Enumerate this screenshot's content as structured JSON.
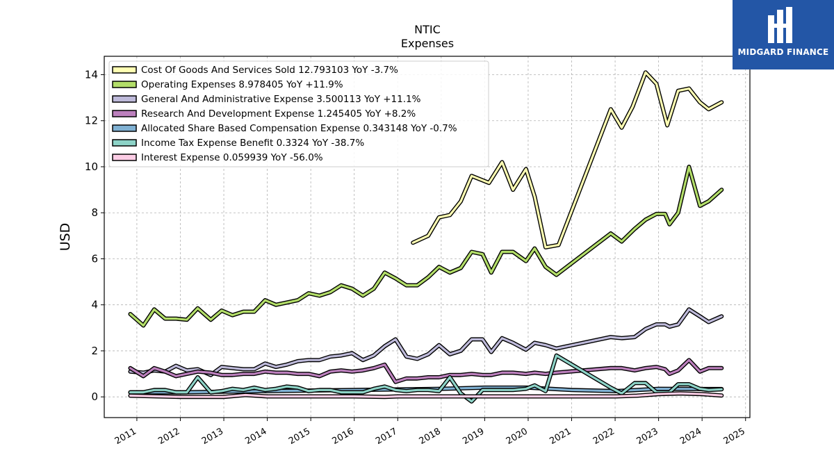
{
  "chart_data": {
    "type": "line",
    "title": "NTIC",
    "subtitle": "Expenses",
    "ylabel": "USD",
    "xlabel": "",
    "ylim": [
      -0.9,
      14.8
    ],
    "xlim": [
      2010.25,
      2025.1
    ],
    "yticks": [
      0,
      2,
      4,
      6,
      8,
      10,
      12,
      14
    ],
    "xticks": [
      2011,
      2012,
      2013,
      2014,
      2015,
      2016,
      2017,
      2018,
      2019,
      2020,
      2021,
      2022,
      2023,
      2024,
      2025
    ],
    "grid": true,
    "legend_position": "top-left",
    "series": [
      {
        "name": "Cost Of Goods And Services Sold",
        "legend_label": "Cost Of Goods And Services Sold  12.793103 YoY -3.7%",
        "color": "#ffffb3",
        "points": [
          [
            2017.35,
            6.7
          ],
          [
            2017.7,
            7.0
          ],
          [
            2017.95,
            7.8
          ],
          [
            2018.2,
            7.9
          ],
          [
            2018.45,
            8.5
          ],
          [
            2018.7,
            9.6
          ],
          [
            2019.1,
            9.3
          ],
          [
            2019.4,
            10.2
          ],
          [
            2019.65,
            9.0
          ],
          [
            2019.95,
            9.9
          ],
          [
            2020.15,
            8.7
          ],
          [
            2020.4,
            6.5
          ],
          [
            2020.7,
            6.6
          ],
          [
            2021.9,
            12.5
          ],
          [
            2022.15,
            11.7
          ],
          [
            2022.4,
            12.6
          ],
          [
            2022.7,
            14.1
          ],
          [
            2022.95,
            13.6
          ],
          [
            2023.2,
            11.8
          ],
          [
            2023.45,
            13.3
          ],
          [
            2023.7,
            13.4
          ],
          [
            2023.95,
            12.8
          ],
          [
            2024.15,
            12.5
          ],
          [
            2024.45,
            12.8
          ]
        ]
      },
      {
        "name": "Operating Expenses",
        "legend_label": "Operating Expenses  8.978405 YoY +11.9%",
        "color": "#b3de69",
        "points": [
          [
            2010.85,
            3.6
          ],
          [
            2011.15,
            3.1
          ],
          [
            2011.4,
            3.8
          ],
          [
            2011.65,
            3.4
          ],
          [
            2011.9,
            3.4
          ],
          [
            2012.15,
            3.35
          ],
          [
            2012.4,
            3.85
          ],
          [
            2012.7,
            3.35
          ],
          [
            2012.95,
            3.75
          ],
          [
            2013.2,
            3.55
          ],
          [
            2013.45,
            3.7
          ],
          [
            2013.7,
            3.7
          ],
          [
            2013.95,
            4.2
          ],
          [
            2014.2,
            4.0
          ],
          [
            2014.45,
            4.1
          ],
          [
            2014.7,
            4.2
          ],
          [
            2014.95,
            4.5
          ],
          [
            2015.2,
            4.4
          ],
          [
            2015.45,
            4.55
          ],
          [
            2015.7,
            4.85
          ],
          [
            2015.95,
            4.7
          ],
          [
            2016.2,
            4.4
          ],
          [
            2016.45,
            4.7
          ],
          [
            2016.7,
            5.4
          ],
          [
            2016.95,
            5.15
          ],
          [
            2017.2,
            4.85
          ],
          [
            2017.45,
            4.85
          ],
          [
            2017.7,
            5.2
          ],
          [
            2017.95,
            5.65
          ],
          [
            2018.2,
            5.4
          ],
          [
            2018.45,
            5.6
          ],
          [
            2018.7,
            6.3
          ],
          [
            2018.95,
            6.2
          ],
          [
            2019.15,
            5.4
          ],
          [
            2019.4,
            6.3
          ],
          [
            2019.65,
            6.3
          ],
          [
            2019.95,
            5.9
          ],
          [
            2020.15,
            6.45
          ],
          [
            2020.4,
            5.65
          ],
          [
            2020.65,
            5.3
          ],
          [
            2021.9,
            7.1
          ],
          [
            2022.15,
            6.75
          ],
          [
            2022.45,
            7.3
          ],
          [
            2022.7,
            7.7
          ],
          [
            2022.95,
            7.95
          ],
          [
            2023.15,
            7.95
          ],
          [
            2023.25,
            7.5
          ],
          [
            2023.45,
            8.0
          ],
          [
            2023.7,
            10.0
          ],
          [
            2023.95,
            8.3
          ],
          [
            2024.15,
            8.5
          ],
          [
            2024.45,
            9.0
          ]
        ]
      },
      {
        "name": "General And Administrative Expense",
        "legend_label": "General And Administrative Expense  3.500113 YoY +11.1%",
        "color": "#bebada",
        "points": [
          [
            2010.85,
            1.1
          ],
          [
            2011.15,
            1.05
          ],
          [
            2011.4,
            1.15
          ],
          [
            2011.65,
            1.1
          ],
          [
            2011.9,
            1.35
          ],
          [
            2012.15,
            1.15
          ],
          [
            2012.4,
            1.2
          ],
          [
            2012.7,
            0.95
          ],
          [
            2012.95,
            1.3
          ],
          [
            2013.2,
            1.25
          ],
          [
            2013.45,
            1.2
          ],
          [
            2013.7,
            1.2
          ],
          [
            2013.95,
            1.45
          ],
          [
            2014.2,
            1.3
          ],
          [
            2014.45,
            1.4
          ],
          [
            2014.7,
            1.55
          ],
          [
            2014.95,
            1.6
          ],
          [
            2015.2,
            1.6
          ],
          [
            2015.45,
            1.75
          ],
          [
            2015.7,
            1.8
          ],
          [
            2015.95,
            1.9
          ],
          [
            2016.2,
            1.6
          ],
          [
            2016.45,
            1.8
          ],
          [
            2016.7,
            2.2
          ],
          [
            2016.95,
            2.5
          ],
          [
            2017.2,
            1.75
          ],
          [
            2017.45,
            1.65
          ],
          [
            2017.7,
            1.85
          ],
          [
            2017.95,
            2.25
          ],
          [
            2018.2,
            1.85
          ],
          [
            2018.45,
            2.0
          ],
          [
            2018.7,
            2.5
          ],
          [
            2018.95,
            2.5
          ],
          [
            2019.15,
            1.95
          ],
          [
            2019.4,
            2.55
          ],
          [
            2019.65,
            2.35
          ],
          [
            2019.95,
            2.05
          ],
          [
            2020.15,
            2.35
          ],
          [
            2020.4,
            2.25
          ],
          [
            2020.65,
            2.1
          ],
          [
            2021.9,
            2.6
          ],
          [
            2022.15,
            2.55
          ],
          [
            2022.45,
            2.6
          ],
          [
            2022.7,
            2.95
          ],
          [
            2022.95,
            3.15
          ],
          [
            2023.15,
            3.15
          ],
          [
            2023.25,
            3.05
          ],
          [
            2023.45,
            3.15
          ],
          [
            2023.7,
            3.8
          ],
          [
            2023.95,
            3.5
          ],
          [
            2024.15,
            3.25
          ],
          [
            2024.45,
            3.5
          ]
        ]
      },
      {
        "name": "Research And Development Expense",
        "legend_label": "Research And Development Expense  1.245405 YoY +8.2%",
        "color": "#bc80bd",
        "points": [
          [
            2010.85,
            1.25
          ],
          [
            2011.15,
            0.9
          ],
          [
            2011.4,
            1.25
          ],
          [
            2011.65,
            1.1
          ],
          [
            2011.9,
            0.9
          ],
          [
            2012.15,
            1.0
          ],
          [
            2012.4,
            1.1
          ],
          [
            2012.7,
            1.05
          ],
          [
            2012.95,
            0.95
          ],
          [
            2013.2,
            0.95
          ],
          [
            2013.45,
            1.0
          ],
          [
            2013.7,
            1.0
          ],
          [
            2013.95,
            1.1
          ],
          [
            2014.2,
            1.05
          ],
          [
            2014.45,
            1.05
          ],
          [
            2014.7,
            1.0
          ],
          [
            2014.95,
            1.0
          ],
          [
            2015.2,
            0.9
          ],
          [
            2015.45,
            1.1
          ],
          [
            2015.7,
            1.15
          ],
          [
            2015.95,
            1.1
          ],
          [
            2016.2,
            1.15
          ],
          [
            2016.45,
            1.25
          ],
          [
            2016.7,
            1.4
          ],
          [
            2016.95,
            0.65
          ],
          [
            2017.2,
            0.8
          ],
          [
            2017.45,
            0.8
          ],
          [
            2017.7,
            0.85
          ],
          [
            2017.95,
            0.85
          ],
          [
            2018.2,
            0.95
          ],
          [
            2018.45,
            0.95
          ],
          [
            2018.7,
            1.0
          ],
          [
            2018.95,
            0.95
          ],
          [
            2019.15,
            0.95
          ],
          [
            2019.4,
            1.05
          ],
          [
            2019.65,
            1.05
          ],
          [
            2019.95,
            1.0
          ],
          [
            2020.15,
            1.05
          ],
          [
            2020.4,
            1.0
          ],
          [
            2020.65,
            1.05
          ],
          [
            2021.9,
            1.25
          ],
          [
            2022.15,
            1.25
          ],
          [
            2022.45,
            1.15
          ],
          [
            2022.7,
            1.25
          ],
          [
            2022.95,
            1.3
          ],
          [
            2023.15,
            1.2
          ],
          [
            2023.25,
            1.0
          ],
          [
            2023.45,
            1.15
          ],
          [
            2023.7,
            1.6
          ],
          [
            2023.95,
            1.1
          ],
          [
            2024.15,
            1.25
          ],
          [
            2024.45,
            1.25
          ]
        ]
      },
      {
        "name": "Allocated Share Based Compensation Expense",
        "legend_label": "Allocated Share Based Compensation Expense  0.343148 YoY -0.7%",
        "color": "#80b1d3",
        "points": [
          [
            2010.85,
            0.2
          ],
          [
            2012.0,
            0.2
          ],
          [
            2014.0,
            0.25
          ],
          [
            2016.0,
            0.3
          ],
          [
            2018.0,
            0.35
          ],
          [
            2019.0,
            0.4
          ],
          [
            2020.0,
            0.4
          ],
          [
            2021.0,
            0.3
          ],
          [
            2022.0,
            0.25
          ],
          [
            2023.0,
            0.35
          ],
          [
            2024.45,
            0.34
          ]
        ]
      },
      {
        "name": "Income Tax Expense Benefit",
        "legend_label": "Income Tax Expense Benefit  0.3324 YoY -38.7%",
        "color": "#8dd3c7",
        "points": [
          [
            2010.85,
            0.2
          ],
          [
            2011.15,
            0.2
          ],
          [
            2011.4,
            0.3
          ],
          [
            2011.65,
            0.3
          ],
          [
            2011.9,
            0.2
          ],
          [
            2012.15,
            0.2
          ],
          [
            2012.4,
            0.85
          ],
          [
            2012.7,
            0.2
          ],
          [
            2012.95,
            0.25
          ],
          [
            2013.2,
            0.35
          ],
          [
            2013.45,
            0.3
          ],
          [
            2013.7,
            0.4
          ],
          [
            2013.95,
            0.3
          ],
          [
            2014.2,
            0.35
          ],
          [
            2014.45,
            0.45
          ],
          [
            2014.7,
            0.4
          ],
          [
            2014.95,
            0.25
          ],
          [
            2015.2,
            0.3
          ],
          [
            2015.45,
            0.3
          ],
          [
            2015.7,
            0.2
          ],
          [
            2015.95,
            0.2
          ],
          [
            2016.2,
            0.2
          ],
          [
            2016.45,
            0.35
          ],
          [
            2016.7,
            0.45
          ],
          [
            2016.95,
            0.3
          ],
          [
            2017.2,
            0.25
          ],
          [
            2017.45,
            0.3
          ],
          [
            2017.7,
            0.3
          ],
          [
            2017.95,
            0.25
          ],
          [
            2018.2,
            0.85
          ],
          [
            2018.45,
            0.15
          ],
          [
            2018.7,
            -0.2
          ],
          [
            2018.95,
            0.3
          ],
          [
            2019.15,
            0.3
          ],
          [
            2019.4,
            0.3
          ],
          [
            2019.65,
            0.3
          ],
          [
            2019.95,
            0.35
          ],
          [
            2020.15,
            0.5
          ],
          [
            2020.4,
            0.25
          ],
          [
            2020.65,
            1.8
          ],
          [
            2021.9,
            0.4
          ],
          [
            2022.15,
            0.15
          ],
          [
            2022.45,
            0.6
          ],
          [
            2022.7,
            0.6
          ],
          [
            2022.95,
            0.2
          ],
          [
            2023.15,
            0.2
          ],
          [
            2023.25,
            0.2
          ],
          [
            2023.45,
            0.55
          ],
          [
            2023.7,
            0.55
          ],
          [
            2023.95,
            0.35
          ],
          [
            2024.15,
            0.3
          ],
          [
            2024.45,
            0.33
          ]
        ]
      },
      {
        "name": "Interest Expense",
        "legend_label": "Interest Expense  0.059939 YoY -56.0%",
        "color": "#fccde5",
        "points": [
          [
            2010.85,
            0.05
          ],
          [
            2012.0,
            0.0
          ],
          [
            2013.0,
            0.0
          ],
          [
            2013.5,
            0.08
          ],
          [
            2014.0,
            0.02
          ],
          [
            2015.0,
            0.02
          ],
          [
            2016.0,
            0.02
          ],
          [
            2016.7,
            0.0
          ],
          [
            2017.0,
            0.02
          ],
          [
            2018.0,
            0.02
          ],
          [
            2019.0,
            0.02
          ],
          [
            2020.0,
            0.02
          ],
          [
            2021.0,
            0.02
          ],
          [
            2022.0,
            0.02
          ],
          [
            2022.5,
            0.05
          ],
          [
            2023.0,
            0.12
          ],
          [
            2023.5,
            0.15
          ],
          [
            2024.0,
            0.12
          ],
          [
            2024.45,
            0.06
          ]
        ]
      }
    ]
  },
  "logo": {
    "text": "MIDGARD FINANCE",
    "icon": "midgard-logo-icon"
  }
}
